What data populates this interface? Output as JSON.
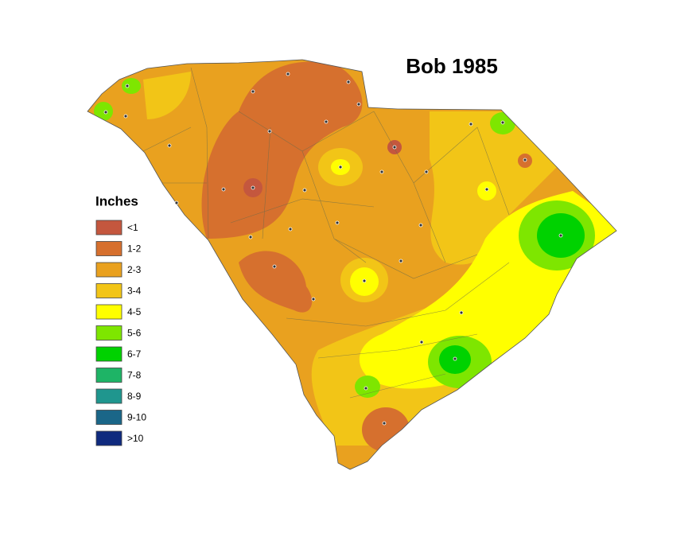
{
  "title": "Bob 1985",
  "legend": {
    "title": "Inches",
    "items": [
      {
        "label": "<1",
        "color": "#c4573e"
      },
      {
        "label": "1-2",
        "color": "#d6702e"
      },
      {
        "label": "2-3",
        "color": "#e9a11f"
      },
      {
        "label": "3-4",
        "color": "#f2c517"
      },
      {
        "label": "4-5",
        "color": "#ffff00"
      },
      {
        "label": "5-6",
        "color": "#7ee600"
      },
      {
        "label": "6-7",
        "color": "#00d200"
      },
      {
        "label": "7-8",
        "color": "#1eb466"
      },
      {
        "label": "8-9",
        "color": "#1f968e"
      },
      {
        "label": "9-10",
        "color": "#1a6688"
      },
      {
        "label": ">10",
        "color": "#0f2a7e"
      }
    ]
  }
}
